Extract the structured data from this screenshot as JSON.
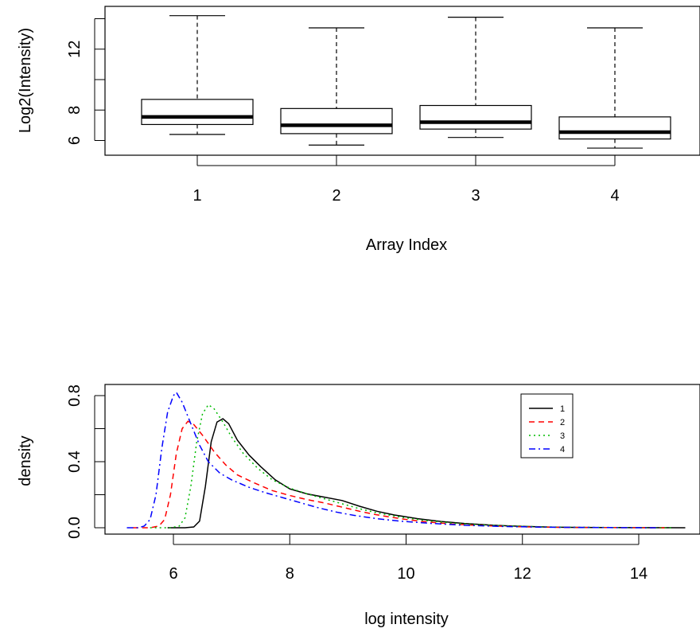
{
  "chart_data": [
    {
      "type": "box",
      "xlabel": "Array Index",
      "ylabel": "Log2(Intensity)",
      "categories": [
        "1",
        "2",
        "3",
        "4"
      ],
      "boxes": [
        {
          "min": 6.4,
          "q1": 7.05,
          "median": 7.55,
          "q3": 8.7,
          "max": 14.2
        },
        {
          "min": 5.7,
          "q1": 6.45,
          "median": 7.0,
          "q3": 8.1,
          "max": 13.4
        },
        {
          "min": 6.2,
          "q1": 6.75,
          "median": 7.2,
          "q3": 8.3,
          "max": 14.1
        },
        {
          "min": 5.5,
          "q1": 6.1,
          "median": 6.55,
          "q3": 7.55,
          "max": 13.4
        }
      ],
      "yticks": [
        6,
        8,
        12
      ],
      "ylim": [
        5,
        14.5
      ]
    },
    {
      "type": "line",
      "xlabel": "log intensity",
      "ylabel": "density",
      "xticks": [
        6,
        8,
        10,
        12,
        14
      ],
      "yticks": [
        0.0,
        0.4,
        0.8
      ],
      "ytick_labels": [
        "0.0",
        "0.4",
        "0.8"
      ],
      "xlim": [
        5.0,
        15.0
      ],
      "ylim": [
        0.0,
        0.85
      ],
      "legend": {
        "position": "top-right",
        "entries": [
          "1",
          "2",
          "3",
          "4"
        ]
      },
      "series": [
        {
          "name": "1",
          "color": "#000000",
          "dash": "solid",
          "points": [
            [
              5.9,
              0.0
            ],
            [
              6.2,
              0.0
            ],
            [
              6.35,
              0.005
            ],
            [
              6.45,
              0.04
            ],
            [
              6.55,
              0.25
            ],
            [
              6.65,
              0.52
            ],
            [
              6.75,
              0.64
            ],
            [
              6.85,
              0.66
            ],
            [
              6.95,
              0.63
            ],
            [
              7.1,
              0.53
            ],
            [
              7.3,
              0.44
            ],
            [
              7.5,
              0.37
            ],
            [
              7.75,
              0.29
            ],
            [
              8.0,
              0.235
            ],
            [
              8.3,
              0.205
            ],
            [
              8.6,
              0.185
            ],
            [
              8.9,
              0.165
            ],
            [
              9.2,
              0.13
            ],
            [
              9.5,
              0.1
            ],
            [
              9.8,
              0.077
            ],
            [
              10.2,
              0.055
            ],
            [
              10.6,
              0.038
            ],
            [
              11.0,
              0.026
            ],
            [
              11.5,
              0.015
            ],
            [
              12.0,
              0.008
            ],
            [
              12.5,
              0.004
            ],
            [
              13.0,
              0.002
            ],
            [
              14.0,
              0.0005
            ],
            [
              14.8,
              0.0
            ]
          ]
        },
        {
          "name": "2",
          "color": "#ff0000",
          "dash": "dashed",
          "points": [
            [
              5.3,
              0.0
            ],
            [
              5.6,
              0.0
            ],
            [
              5.75,
              0.01
            ],
            [
              5.85,
              0.05
            ],
            [
              5.95,
              0.2
            ],
            [
              6.05,
              0.45
            ],
            [
              6.15,
              0.6
            ],
            [
              6.25,
              0.645
            ],
            [
              6.35,
              0.625
            ],
            [
              6.5,
              0.56
            ],
            [
              6.7,
              0.46
            ],
            [
              6.9,
              0.38
            ],
            [
              7.1,
              0.32
            ],
            [
              7.4,
              0.27
            ],
            [
              7.7,
              0.225
            ],
            [
              8.0,
              0.195
            ],
            [
              8.3,
              0.17
            ],
            [
              8.6,
              0.15
            ],
            [
              8.9,
              0.125
            ],
            [
              9.2,
              0.1
            ],
            [
              9.5,
              0.078
            ],
            [
              9.9,
              0.055
            ],
            [
              10.3,
              0.037
            ],
            [
              10.8,
              0.022
            ],
            [
              11.3,
              0.013
            ],
            [
              12.0,
              0.006
            ],
            [
              12.8,
              0.002
            ],
            [
              14.0,
              0.0003
            ],
            [
              14.5,
              0.0
            ]
          ]
        },
        {
          "name": "3",
          "color": "#00bb00",
          "dash": "dotted",
          "points": [
            [
              5.6,
              0.0
            ],
            [
              5.95,
              0.0
            ],
            [
              6.1,
              0.01
            ],
            [
              6.2,
              0.06
            ],
            [
              6.3,
              0.25
            ],
            [
              6.4,
              0.52
            ],
            [
              6.5,
              0.69
            ],
            [
              6.6,
              0.745
            ],
            [
              6.7,
              0.72
            ],
            [
              6.85,
              0.64
            ],
            [
              7.0,
              0.55
            ],
            [
              7.2,
              0.45
            ],
            [
              7.45,
              0.36
            ],
            [
              7.7,
              0.29
            ],
            [
              8.0,
              0.24
            ],
            [
              8.3,
              0.205
            ],
            [
              8.6,
              0.175
            ],
            [
              8.9,
              0.145
            ],
            [
              9.2,
              0.115
            ],
            [
              9.5,
              0.09
            ],
            [
              9.9,
              0.065
            ],
            [
              10.3,
              0.045
            ],
            [
              10.8,
              0.028
            ],
            [
              11.3,
              0.017
            ],
            [
              12.0,
              0.008
            ],
            [
              12.8,
              0.003
            ],
            [
              14.0,
              0.0005
            ],
            [
              14.6,
              0.0
            ]
          ]
        },
        {
          "name": "4",
          "color": "#0000ff",
          "dash": "dashdot",
          "points": [
            [
              5.2,
              0.0
            ],
            [
              5.4,
              0.0
            ],
            [
              5.5,
              0.01
            ],
            [
              5.6,
              0.05
            ],
            [
              5.7,
              0.2
            ],
            [
              5.8,
              0.48
            ],
            [
              5.9,
              0.7
            ],
            [
              6.0,
              0.8
            ],
            [
              6.05,
              0.82
            ],
            [
              6.15,
              0.76
            ],
            [
              6.3,
              0.63
            ],
            [
              6.45,
              0.5
            ],
            [
              6.6,
              0.4
            ],
            [
              6.8,
              0.33
            ],
            [
              7.0,
              0.29
            ],
            [
              7.3,
              0.245
            ],
            [
              7.6,
              0.21
            ],
            [
              7.9,
              0.18
            ],
            [
              8.2,
              0.15
            ],
            [
              8.5,
              0.12
            ],
            [
              8.8,
              0.095
            ],
            [
              9.1,
              0.075
            ],
            [
              9.5,
              0.055
            ],
            [
              9.9,
              0.04
            ],
            [
              10.4,
              0.027
            ],
            [
              11.0,
              0.015
            ],
            [
              11.7,
              0.007
            ],
            [
              12.5,
              0.003
            ],
            [
              13.5,
              0.0008
            ],
            [
              14.3,
              0.0
            ]
          ]
        }
      ]
    }
  ]
}
